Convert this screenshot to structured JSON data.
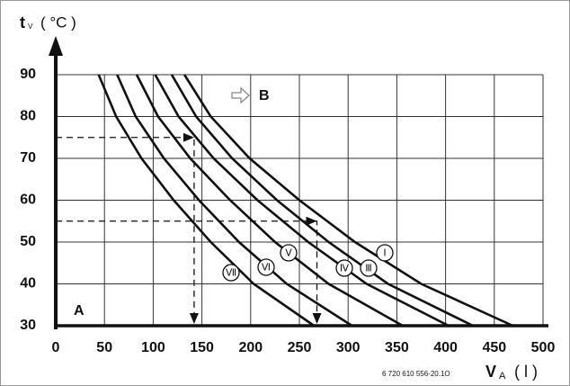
{
  "chart_data": {
    "type": "line",
    "y_label": "t",
    "y_label_sub": "V",
    "y_unit": "( °C )",
    "x_label": "V",
    "x_label_sub": "A",
    "x_unit": "( l )",
    "xlim": [
      0,
      500
    ],
    "xticks": [
      0,
      50,
      100,
      150,
      200,
      250,
      300,
      350,
      400,
      450,
      500
    ],
    "ylim": [
      30,
      90
    ],
    "yticks": [
      30,
      40,
      50,
      60,
      70,
      80,
      90
    ],
    "grid": true,
    "series": [
      {
        "name": "Ⅶ",
        "color": "#111111",
        "x": [
          44,
          62,
          88,
          121,
          159,
          203,
          265
        ],
        "y": [
          90,
          80,
          70,
          60,
          50,
          40,
          30
        ]
      },
      {
        "name": "Ⅵ",
        "color": "#111111",
        "x": [
          63,
          82,
          111,
          147,
          188,
          237,
          304
        ],
        "y": [
          90,
          80,
          70,
          60,
          50,
          40,
          30
        ]
      },
      {
        "name": "Ⅴ",
        "color": "#111111",
        "x": [
          83,
          105,
          138,
          179,
          225,
          280,
          356
        ],
        "y": [
          90,
          80,
          70,
          60,
          50,
          40,
          30
        ]
      },
      {
        "name": "Ⅳ",
        "color": "#111111",
        "x": [
          102,
          126,
          162,
          207,
          259,
          319,
          403
        ],
        "y": [
          90,
          80,
          70,
          60,
          50,
          40,
          30
        ]
      },
      {
        "name": "Ⅲ",
        "color": "#111111",
        "x": [
          119,
          144,
          181,
          227,
          280,
          341,
          428
        ],
        "y": [
          90,
          80,
          70,
          60,
          50,
          40,
          30
        ]
      },
      {
        "name": "Ⅰ",
        "color": "#111111",
        "x": [
          132,
          159,
          199,
          250,
          307,
          375,
          469
        ],
        "y": [
          90,
          80,
          70,
          60,
          50,
          40,
          30
        ]
      }
    ],
    "examples": [
      {
        "t": 75,
        "v": 142
      },
      {
        "t": 55,
        "v": 268
      }
    ],
    "annotations": [
      "A",
      "B"
    ],
    "code": "6 720 610 556-20.1O"
  }
}
